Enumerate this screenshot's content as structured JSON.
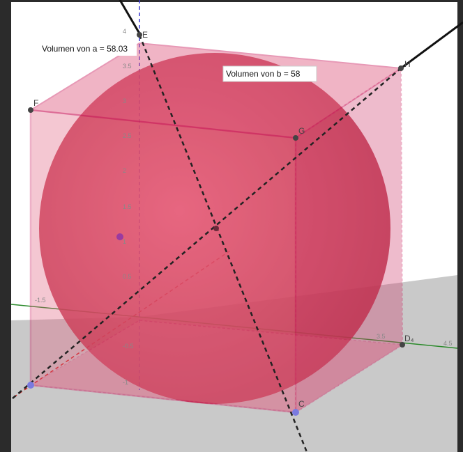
{
  "labels": {
    "volume_a": "Volumen von a = 58.03",
    "volume_b": "Volumen von b = 58"
  },
  "points": {
    "E": "E",
    "F": "F",
    "G": "G",
    "H": "H",
    "C": "C",
    "D": "D₄"
  },
  "z_ticks": [
    "4",
    "3.5",
    "3",
    "2.5",
    "2",
    "1.5",
    "1",
    "0.5",
    "-0.5",
    "-1"
  ],
  "y_ticks": [
    "-1.5",
    "3.5",
    "4.5"
  ]
}
